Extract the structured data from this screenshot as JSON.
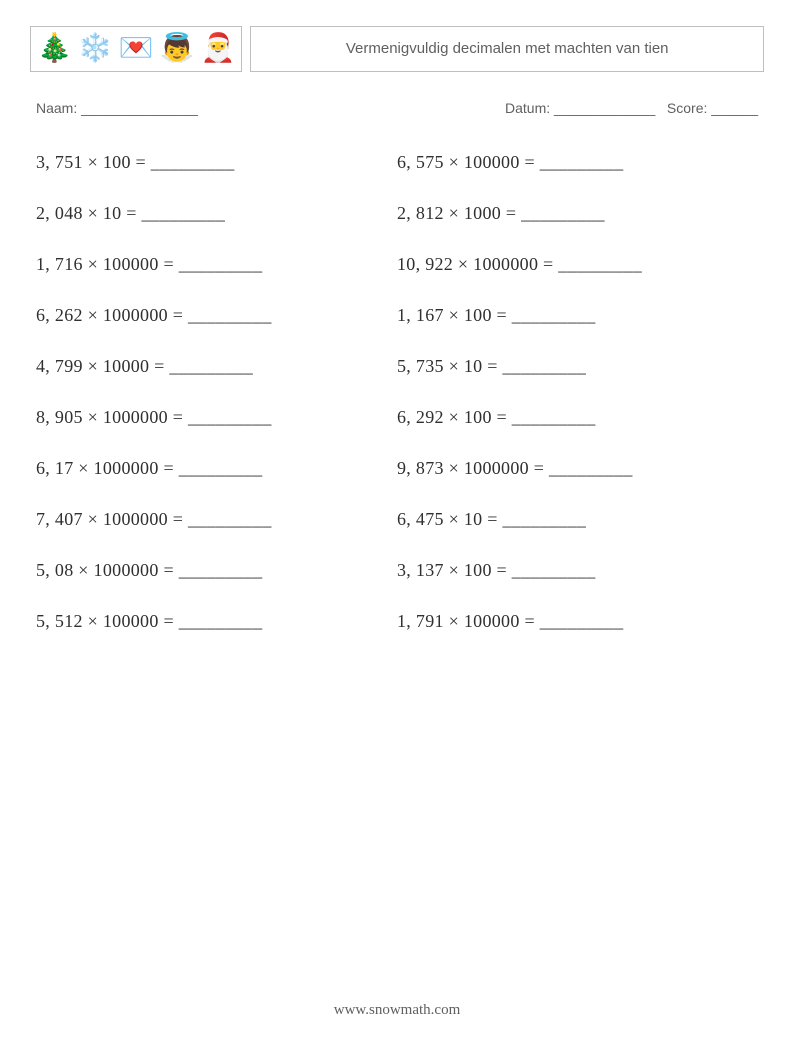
{
  "header": {
    "icons": [
      "🎄",
      "❄️",
      "💌",
      "👼",
      "🎅"
    ],
    "title": "Vermenigvuldig decimalen met machten van tien"
  },
  "info": {
    "name_label": "Naam: _______________",
    "date_label": "Datum: _____________",
    "score_label": "Score: ______"
  },
  "multiply_sign": "×",
  "equals_blank": " = _________",
  "columns": [
    [
      {
        "a": "3, 751",
        "b": "100"
      },
      {
        "a": "2, 048",
        "b": "10"
      },
      {
        "a": "1, 716",
        "b": "100000"
      },
      {
        "a": "6, 262",
        "b": "1000000"
      },
      {
        "a": "4, 799",
        "b": "10000"
      },
      {
        "a": "8, 905",
        "b": "1000000"
      },
      {
        "a": "6, 17",
        "b": "1000000"
      },
      {
        "a": "7, 407",
        "b": "1000000"
      },
      {
        "a": "5, 08",
        "b": "1000000"
      },
      {
        "a": "5, 512",
        "b": "100000"
      }
    ],
    [
      {
        "a": "6, 575",
        "b": "100000"
      },
      {
        "a": "2, 812",
        "b": "1000"
      },
      {
        "a": "10, 922",
        "b": "1000000"
      },
      {
        "a": "1, 167",
        "b": "100"
      },
      {
        "a": "5, 735",
        "b": "10"
      },
      {
        "a": "6, 292",
        "b": "100"
      },
      {
        "a": "9, 873",
        "b": "1000000"
      },
      {
        "a": "6, 475",
        "b": "10"
      },
      {
        "a": "3, 137",
        "b": "100"
      },
      {
        "a": "1, 791",
        "b": "100000"
      }
    ]
  ],
  "footer": "www.snowmath.com"
}
